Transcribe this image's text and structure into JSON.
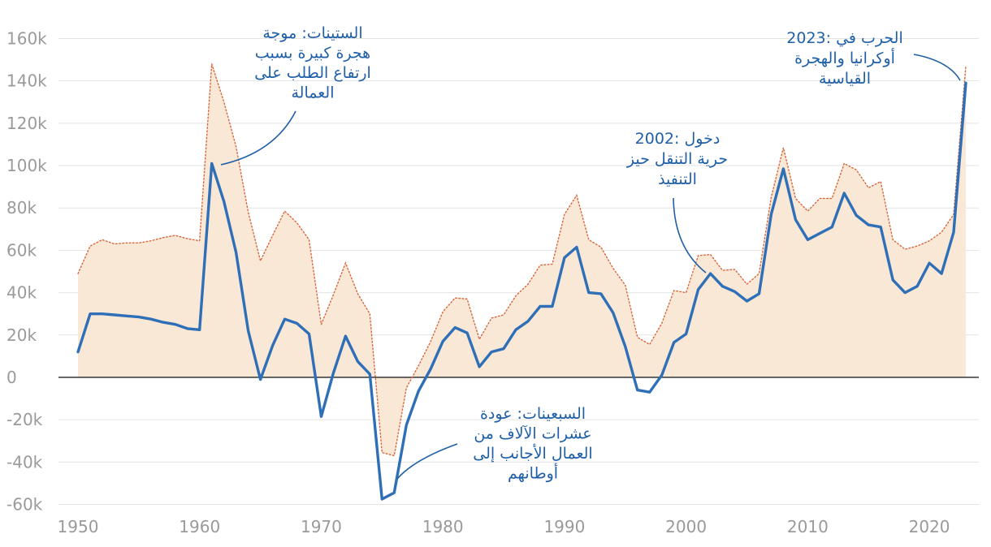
{
  "chart_data": {
    "type": "line",
    "title": "",
    "xlabel": "",
    "ylabel": "",
    "xlim": [
      1950,
      2023
    ],
    "ylim": [
      -60000,
      160000
    ],
    "grid": true,
    "y_tick_labels": [
      {
        "value": 160000,
        "label": "160k"
      },
      {
        "value": 140000,
        "label": "140k"
      },
      {
        "value": 120000,
        "label": "120k"
      },
      {
        "value": 100000,
        "label": "100k"
      },
      {
        "value": 80000,
        "label": "80k"
      },
      {
        "value": 60000,
        "label": "60k"
      },
      {
        "value": 40000,
        "label": "40k"
      },
      {
        "value": 20000,
        "label": "20k"
      },
      {
        "value": 0,
        "label": "0"
      },
      {
        "value": -20000,
        "label": "-20k"
      },
      {
        "value": -40000,
        "label": "-40k"
      },
      {
        "value": -60000,
        "label": "-60k"
      }
    ],
    "x_tick_labels": [
      {
        "value": 1950,
        "label": "1950"
      },
      {
        "value": 1960,
        "label": "1960"
      },
      {
        "value": 1970,
        "label": "1970"
      },
      {
        "value": 1980,
        "label": "1980"
      },
      {
        "value": 1990,
        "label": "1990"
      },
      {
        "value": 2000,
        "label": "2000"
      },
      {
        "value": 2010,
        "label": "2010"
      },
      {
        "value": 2020,
        "label": "2020"
      }
    ],
    "colors": {
      "net_line": "#2f6fb7",
      "gross_line": "#d9663a",
      "gross_fill": "#fae8d6",
      "annotation": "#1f5fa8",
      "zero_line": "#222222"
    },
    "series": [
      {
        "name": "net",
        "style": "solid",
        "x": [
          1950,
          1951,
          1952,
          1953,
          1954,
          1955,
          1956,
          1957,
          1958,
          1959,
          1960,
          1961,
          1962,
          1963,
          1964,
          1965,
          1966,
          1967,
          1968,
          1969,
          1970,
          1971,
          1972,
          1973,
          1974,
          1975,
          1976,
          1977,
          1978,
          1979,
          1980,
          1981,
          1982,
          1983,
          1984,
          1985,
          1986,
          1987,
          1988,
          1989,
          1990,
          1991,
          1992,
          1993,
          1994,
          1995,
          1996,
          1997,
          1998,
          1999,
          2000,
          2001,
          2002,
          2003,
          2004,
          2005,
          2006,
          2007,
          2008,
          2009,
          2010,
          2011,
          2012,
          2013,
          2014,
          2015,
          2016,
          2017,
          2018,
          2019,
          2020,
          2021,
          2022,
          2023
        ],
        "values": [
          12000,
          30000,
          30000,
          29500,
          29000,
          28500,
          27500,
          26000,
          25000,
          23000,
          22500,
          101000,
          83000,
          59000,
          22000,
          -1000,
          15000,
          27500,
          25500,
          20500,
          -18500,
          2000,
          19500,
          7500,
          1500,
          -57500,
          -54500,
          -22500,
          -6500,
          4000,
          17000,
          23500,
          21000,
          5000,
          12000,
          13500,
          22500,
          26500,
          33500,
          33500,
          56500,
          61500,
          40000,
          39500,
          30500,
          14500,
          -6000,
          -7000,
          1000,
          16500,
          20500,
          41500,
          49000,
          43000,
          40500,
          36000,
          39500,
          77000,
          98500,
          74500,
          65000,
          68000,
          71000,
          87000,
          76500,
          72000,
          71000,
          46000,
          40000,
          43000,
          54000,
          49000,
          68500,
          139000
        ]
      },
      {
        "name": "gross",
        "style": "dotted-filled",
        "x": [
          1950,
          1951,
          1952,
          1953,
          1954,
          1955,
          1956,
          1957,
          1958,
          1959,
          1960,
          1961,
          1962,
          1963,
          1964,
          1965,
          1966,
          1967,
          1968,
          1969,
          1970,
          1971,
          1972,
          1973,
          1974,
          1975,
          1976,
          1977,
          1978,
          1979,
          1980,
          1981,
          1982,
          1983,
          1984,
          1985,
          1986,
          1987,
          1988,
          1989,
          1990,
          1991,
          1992,
          1993,
          1994,
          1995,
          1996,
          1997,
          1998,
          1999,
          2000,
          2001,
          2002,
          2003,
          2004,
          2005,
          2006,
          2007,
          2008,
          2009,
          2010,
          2011,
          2012,
          2013,
          2014,
          2015,
          2016,
          2017,
          2018,
          2019,
          2020,
          2021,
          2022,
          2023
        ],
        "values": [
          49000,
          62000,
          65000,
          63000,
          63500,
          63500,
          64500,
          66000,
          67000,
          65500,
          64500,
          148000,
          130000,
          109000,
          78000,
          55000,
          67000,
          78500,
          73000,
          65000,
          25000,
          39000,
          54000,
          39500,
          30000,
          -35500,
          -37000,
          -5000,
          5500,
          17000,
          31000,
          37500,
          37000,
          18000,
          28000,
          29500,
          38500,
          44000,
          53000,
          53500,
          77000,
          86000,
          65000,
          61500,
          51500,
          43500,
          19000,
          15500,
          25500,
          41000,
          40000,
          57500,
          58000,
          50500,
          51000,
          44000,
          49000,
          85000,
          108500,
          84500,
          78500,
          84500,
          84500,
          101000,
          98000,
          89500,
          92500,
          65000,
          60500,
          62000,
          64500,
          68500,
          77000,
          147000
        ]
      }
    ],
    "annotations": [
      {
        "id": "sixties",
        "lines": [
          "الستينات: موجة",
          "هجرة كبيرة بسبب",
          "ارتفاع الطلب على",
          "العمالة"
        ]
      },
      {
        "id": "seventies",
        "lines": [
          "السبعينات: عودة",
          "عشرات الآلاف من",
          "العمال الأجانب إلى",
          "أوطانهم"
        ]
      },
      {
        "id": "y2002",
        "lines": [
          "دخول :2002",
          "حرية التنقل حيز",
          "التنفيذ"
        ]
      },
      {
        "id": "y2023",
        "lines": [
          "الحرب في :2023",
          "أوكرانيا والهجرة",
          "القياسية"
        ]
      }
    ]
  }
}
